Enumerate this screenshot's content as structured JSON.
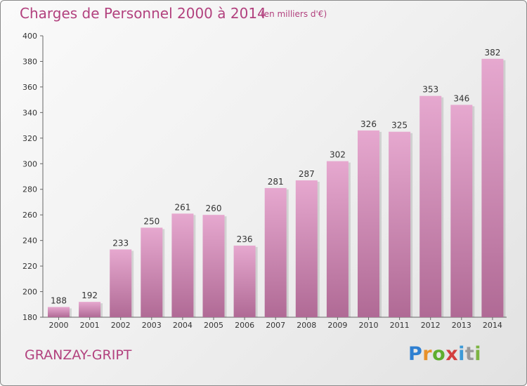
{
  "title": "Charges de Personnel 2000 à 2014",
  "subtitle": "(en milliers d'€)",
  "commune": "GRANZAY-GRIPT",
  "brand": {
    "letters": [
      "P",
      "r",
      "o",
      "x",
      "i",
      "t",
      "i"
    ],
    "colors": [
      "#2e7fd1",
      "#e8912a",
      "#5fae2e",
      "#d33f3f",
      "#3d9ad8",
      "#9a9a9a",
      "#7cb342"
    ]
  },
  "colors": {
    "bar_top": "#e6a8cf",
    "bar_bottom": "#b06a95",
    "text_accent": "#b2417e"
  },
  "chart_data": {
    "type": "bar",
    "categories": [
      "2000",
      "2001",
      "2002",
      "2003",
      "2004",
      "2005",
      "2006",
      "2007",
      "2008",
      "2009",
      "2010",
      "2011",
      "2012",
      "2013",
      "2014"
    ],
    "values": [
      188,
      192,
      233,
      250,
      261,
      260,
      236,
      281,
      287,
      302,
      326,
      325,
      353,
      346,
      382
    ],
    "ylim": [
      180,
      400
    ],
    "yticks": [
      180,
      200,
      220,
      240,
      260,
      280,
      300,
      320,
      340,
      360,
      380,
      400
    ],
    "grid": false,
    "data_labels": true
  }
}
